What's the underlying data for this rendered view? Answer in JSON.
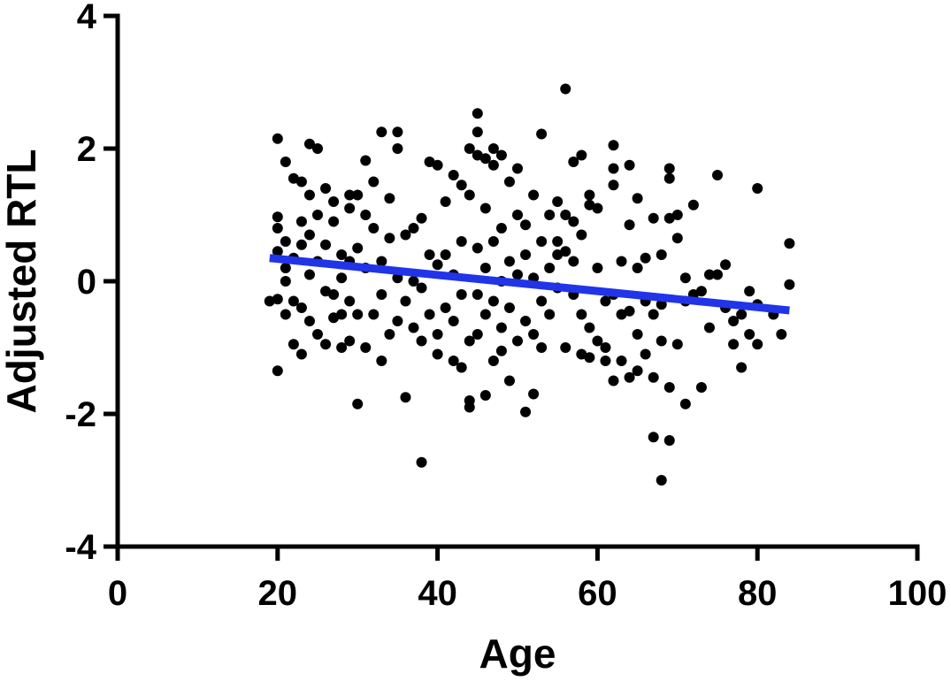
{
  "chart_data": {
    "type": "scatter",
    "xlabel": "Age",
    "ylabel": "Adjusted RTL",
    "xlim": [
      0,
      100
    ],
    "ylim": [
      -4,
      4
    ],
    "x_ticks": [
      "0",
      "20",
      "40",
      "60",
      "80",
      "100"
    ],
    "y_ticks": [
      "4",
      "2",
      "0",
      "-2",
      "-4"
    ],
    "grid": false,
    "point_color": "#000000",
    "fit_line": {
      "color": "#2134e8",
      "x": [
        19,
        84
      ],
      "y": [
        0.35,
        -0.44
      ]
    },
    "points": [
      [
        20,
        2.15
      ],
      [
        20,
        0.97
      ],
      [
        20,
        0.8
      ],
      [
        20,
        0.45
      ],
      [
        20,
        -0.27
      ],
      [
        20,
        -1.35
      ],
      [
        19,
        -0.3
      ],
      [
        21,
        1.8
      ],
      [
        21,
        0.6
      ],
      [
        21,
        0.2
      ],
      [
        21,
        -0.5
      ],
      [
        21,
        0.0
      ],
      [
        22,
        1.55
      ],
      [
        22,
        0.35
      ],
      [
        22,
        -0.95
      ],
      [
        22,
        -0.3
      ],
      [
        23,
        1.5
      ],
      [
        23,
        0.9
      ],
      [
        23,
        0.55
      ],
      [
        23,
        -0.4
      ],
      [
        23,
        -1.1
      ],
      [
        24,
        2.07
      ],
      [
        24,
        1.3
      ],
      [
        24,
        0.7
      ],
      [
        24,
        0.1
      ],
      [
        24,
        -0.6
      ],
      [
        25,
        2.0
      ],
      [
        25,
        1.0
      ],
      [
        25,
        0.3
      ],
      [
        25,
        -0.8
      ],
      [
        26,
        1.4
      ],
      [
        26,
        0.55
      ],
      [
        26,
        -0.15
      ],
      [
        26,
        -0.95
      ],
      [
        27,
        1.2
      ],
      [
        27,
        0.9
      ],
      [
        27,
        -0.2
      ],
      [
        27,
        -0.55
      ],
      [
        28,
        0.4
      ],
      [
        28,
        0.05
      ],
      [
        28,
        -0.5
      ],
      [
        28,
        -1.0
      ],
      [
        29,
        1.3
      ],
      [
        29,
        1.1
      ],
      [
        29,
        0.3
      ],
      [
        29,
        -0.3
      ],
      [
        29,
        -0.9
      ],
      [
        30,
        1.3
      ],
      [
        30,
        0.5
      ],
      [
        30,
        -0.5
      ],
      [
        30,
        -1.85
      ],
      [
        31,
        1.82
      ],
      [
        31,
        1.0
      ],
      [
        31,
        0.2
      ],
      [
        31,
        -1.0
      ],
      [
        32,
        1.5
      ],
      [
        32,
        0.8
      ],
      [
        32,
        -0.5
      ],
      [
        33,
        2.25
      ],
      [
        33,
        0.3
      ],
      [
        33,
        -0.2
      ],
      [
        33,
        -1.2
      ],
      [
        34,
        1.25
      ],
      [
        34,
        0.65
      ],
      [
        34,
        -0.8
      ],
      [
        35,
        2.25
      ],
      [
        35,
        2.0
      ],
      [
        35,
        0.05
      ],
      [
        35,
        -0.6
      ],
      [
        36,
        0.7
      ],
      [
        36,
        -0.3
      ],
      [
        36,
        -1.75
      ],
      [
        37,
        0.8
      ],
      [
        37,
        0.0
      ],
      [
        37,
        -0.7
      ],
      [
        38,
        0.95
      ],
      [
        38,
        -0.1
      ],
      [
        38,
        -0.9
      ],
      [
        38,
        -2.73
      ],
      [
        39,
        1.8
      ],
      [
        39,
        0.4
      ],
      [
        39,
        -0.5
      ],
      [
        40,
        1.75
      ],
      [
        40,
        0.25
      ],
      [
        40,
        -0.8
      ],
      [
        40,
        -1.1
      ],
      [
        41,
        1.2
      ],
      [
        41,
        0.4
      ],
      [
        41,
        -0.4
      ],
      [
        42,
        1.6
      ],
      [
        42,
        0.1
      ],
      [
        42,
        -0.6
      ],
      [
        42,
        -1.2
      ],
      [
        43,
        1.45
      ],
      [
        43,
        0.6
      ],
      [
        43,
        -0.2
      ],
      [
        43,
        -1.3
      ],
      [
        44,
        2.0
      ],
      [
        44,
        1.3
      ],
      [
        44,
        -0.9
      ],
      [
        44,
        -1.8
      ],
      [
        44,
        -1.9
      ],
      [
        45,
        2.53
      ],
      [
        45,
        2.25
      ],
      [
        45,
        1.9
      ],
      [
        45,
        0.5
      ],
      [
        45,
        -0.2
      ],
      [
        45,
        -0.8
      ],
      [
        46,
        1.85
      ],
      [
        46,
        1.1
      ],
      [
        46,
        0.2
      ],
      [
        46,
        -0.5
      ],
      [
        46,
        -1.72
      ],
      [
        47,
        2.0
      ],
      [
        47,
        1.75
      ],
      [
        47,
        0.6
      ],
      [
        47,
        -0.3
      ],
      [
        47,
        -1.2
      ],
      [
        48,
        1.9
      ],
      [
        48,
        0.8
      ],
      [
        48,
        0.0
      ],
      [
        48,
        -0.7
      ],
      [
        48,
        -1.05
      ],
      [
        49,
        1.5
      ],
      [
        49,
        0.3
      ],
      [
        49,
        -0.4
      ],
      [
        49,
        -1.5
      ],
      [
        50,
        1.7
      ],
      [
        50,
        1.0
      ],
      [
        50,
        0.1
      ],
      [
        50,
        -0.9
      ],
      [
        51,
        0.85
      ],
      [
        51,
        0.4
      ],
      [
        51,
        -0.6
      ],
      [
        51,
        -1.97
      ],
      [
        52,
        1.3
      ],
      [
        52,
        0.05
      ],
      [
        52,
        -0.8
      ],
      [
        52,
        -1.7
      ],
      [
        53,
        2.22
      ],
      [
        53,
        0.6
      ],
      [
        53,
        -0.3
      ],
      [
        53,
        -1.0
      ],
      [
        54,
        1.0
      ],
      [
        54,
        0.2
      ],
      [
        54,
        -0.5
      ],
      [
        55,
        1.2
      ],
      [
        55,
        0.6
      ],
      [
        55,
        0.4
      ],
      [
        55,
        -0.1
      ],
      [
        56,
        2.9
      ],
      [
        56,
        1.0
      ],
      [
        56,
        0.45
      ],
      [
        56,
        -1.0
      ],
      [
        57,
        1.8
      ],
      [
        57,
        0.9
      ],
      [
        57,
        0.3
      ],
      [
        57,
        -0.2
      ],
      [
        58,
        1.9
      ],
      [
        58,
        0.7
      ],
      [
        58,
        -0.5
      ],
      [
        58,
        -1.1
      ],
      [
        59,
        1.3
      ],
      [
        59,
        1.15
      ],
      [
        59,
        -0.7
      ],
      [
        59,
        -1.15
      ],
      [
        60,
        1.1
      ],
      [
        60,
        0.2
      ],
      [
        60,
        -0.9
      ],
      [
        61,
        -0.3
      ],
      [
        61,
        -1.0
      ],
      [
        61,
        -1.2
      ],
      [
        62,
        2.05
      ],
      [
        62,
        1.7
      ],
      [
        62,
        1.45
      ],
      [
        62,
        -0.2
      ],
      [
        62,
        -1.5
      ],
      [
        63,
        0.3
      ],
      [
        63,
        -0.5
      ],
      [
        63,
        -1.2
      ],
      [
        64,
        1.75
      ],
      [
        64,
        0.85
      ],
      [
        64,
        -0.45
      ],
      [
        64,
        -1.45
      ],
      [
        65,
        1.25
      ],
      [
        65,
        0.2
      ],
      [
        65,
        -0.8
      ],
      [
        65,
        -1.35
      ],
      [
        66,
        0.35
      ],
      [
        66,
        -0.3
      ],
      [
        66,
        -1.1
      ],
      [
        67,
        0.95
      ],
      [
        67,
        -0.5
      ],
      [
        67,
        -1.45
      ],
      [
        67,
        -2.35
      ],
      [
        68,
        0.4
      ],
      [
        68,
        -0.35
      ],
      [
        68,
        -0.9
      ],
      [
        68,
        -3.0
      ],
      [
        69,
        1.7
      ],
      [
        69,
        1.55
      ],
      [
        69,
        0.95
      ],
      [
        69,
        -1.6
      ],
      [
        69,
        -2.4
      ],
      [
        70,
        1.0
      ],
      [
        70,
        0.65
      ],
      [
        70,
        -0.95
      ],
      [
        71,
        0.05
      ],
      [
        71,
        -0.3
      ],
      [
        71,
        -1.85
      ],
      [
        72,
        1.15
      ],
      [
        72,
        -0.2
      ],
      [
        73,
        -0.15
      ],
      [
        73,
        -1.6
      ],
      [
        74,
        0.1
      ],
      [
        74,
        -0.7
      ],
      [
        75,
        1.6
      ],
      [
        75,
        0.1
      ],
      [
        76,
        0.25
      ],
      [
        76,
        -0.4
      ],
      [
        77,
        -0.6
      ],
      [
        77,
        -0.95
      ],
      [
        78,
        -0.5
      ],
      [
        78,
        -1.3
      ],
      [
        79,
        -0.15
      ],
      [
        79,
        -0.8
      ],
      [
        80,
        1.4
      ],
      [
        80,
        -0.35
      ],
      [
        80,
        -0.95
      ],
      [
        82,
        -0.5
      ],
      [
        83,
        -0.8
      ],
      [
        84,
        0.57
      ],
      [
        84,
        -0.05
      ]
    ]
  }
}
